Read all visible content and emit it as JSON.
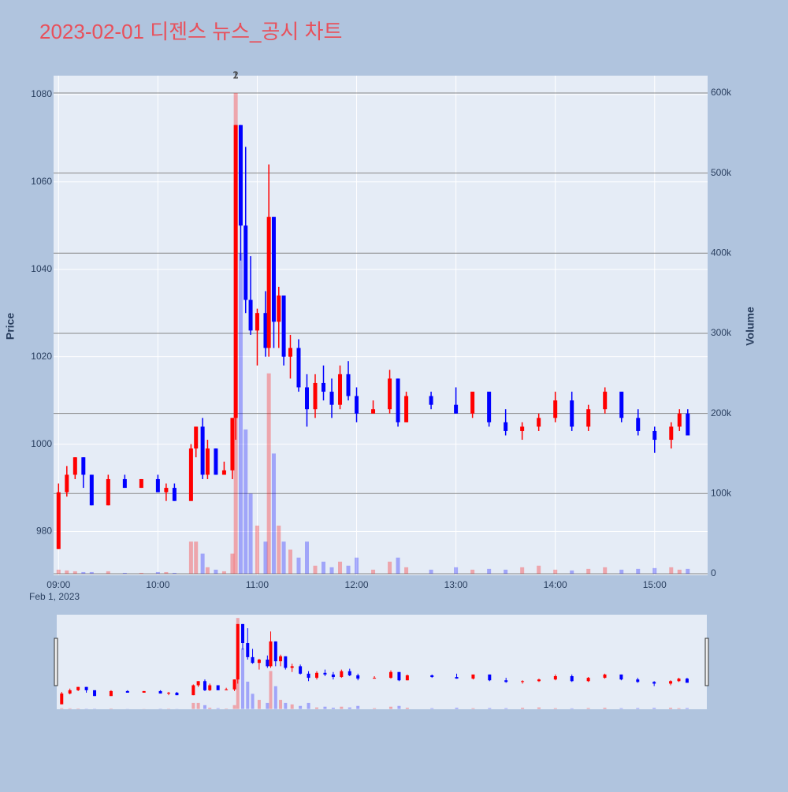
{
  "chart_data": {
    "type": "candlestick",
    "title": "2023-02-01 디젠스 뉴스_공시 차트",
    "ylabel": "Price",
    "y2label": "Volume",
    "x_date_label": "Feb 1, 2023",
    "increasing_color": "#ff0000",
    "decreasing_color": "#0000ff",
    "x": [
      "09:00",
      "09:05",
      "09:10",
      "09:15",
      "09:20",
      "09:30",
      "09:40",
      "09:50",
      "10:00",
      "10:05",
      "10:10",
      "10:20",
      "10:23",
      "10:27",
      "10:30",
      "10:35",
      "10:40",
      "10:45",
      "10:47",
      "10:50",
      "10:53",
      "10:56",
      "11:00",
      "11:05",
      "11:07",
      "11:10",
      "11:13",
      "11:16",
      "11:20",
      "11:25",
      "11:30",
      "11:35",
      "11:40",
      "11:45",
      "11:50",
      "11:55",
      "12:00",
      "12:10",
      "12:20",
      "12:25",
      "12:30",
      "12:45",
      "13:00",
      "13:10",
      "13:20",
      "13:30",
      "13:40",
      "13:50",
      "14:00",
      "14:10",
      "14:20",
      "14:30",
      "14:40",
      "14:50",
      "15:00",
      "15:10",
      "15:15",
      "15:20"
    ],
    "open": [
      976,
      989,
      993,
      997,
      993,
      986,
      992,
      990,
      992,
      989,
      990,
      987,
      999,
      1004,
      993,
      999,
      993,
      994,
      1006,
      1073,
      1050,
      1033,
      1026,
      1030,
      1022,
      1052,
      1028,
      1034,
      1020,
      1022,
      1013,
      1008,
      1014,
      1012,
      1009,
      1016,
      1011,
      1007,
      1008,
      1015,
      1005,
      1011,
      1009,
      1007,
      1012,
      1005,
      1003,
      1004,
      1006,
      1010,
      1004,
      1008,
      1012,
      1006,
      1003,
      1001,
      1004,
      1007
    ],
    "high": [
      991,
      995,
      997,
      997,
      993,
      993,
      993,
      992,
      993,
      991,
      991,
      1000,
      1004,
      1006,
      1001,
      999,
      996,
      1006,
      1073,
      1073,
      1068,
      1043,
      1031,
      1035,
      1064,
      1052,
      1036,
      1034,
      1025,
      1024,
      1016,
      1016,
      1018,
      1015,
      1018,
      1019,
      1013,
      1010,
      1017,
      1015,
      1012,
      1012,
      1013,
      1012,
      1012,
      1008,
      1005,
      1007,
      1012,
      1012,
      1009,
      1013,
      1012,
      1008,
      1004,
      1005,
      1008,
      1008
    ],
    "low": [
      976,
      988,
      992,
      990,
      986,
      986,
      990,
      990,
      989,
      987,
      987,
      987,
      997,
      992,
      992,
      993,
      993,
      992,
      1001,
      1042,
      1030,
      1025,
      1018,
      1020,
      1020,
      1022,
      1022,
      1018,
      1015,
      1012,
      1004,
      1006,
      1010,
      1006,
      1008,
      1010,
      1005,
      1007,
      1007,
      1004,
      1005,
      1008,
      1007,
      1006,
      1004,
      1002,
      1001,
      1003,
      1005,
      1003,
      1003,
      1007,
      1005,
      1002,
      998,
      999,
      1003,
      1002
    ],
    "close": [
      989,
      993,
      997,
      993,
      986,
      992,
      990,
      992,
      989,
      990,
      987,
      999,
      1004,
      993,
      999,
      993,
      994,
      1006,
      1073,
      1050,
      1033,
      1026,
      1030,
      1022,
      1052,
      1028,
      1034,
      1020,
      1022,
      1013,
      1008,
      1014,
      1012,
      1009,
      1016,
      1011,
      1007,
      1008,
      1015,
      1005,
      1011,
      1009,
      1007,
      1012,
      1005,
      1003,
      1004,
      1006,
      1010,
      1004,
      1008,
      1012,
      1006,
      1003,
      1001,
      1004,
      1007,
      1002
    ],
    "volume": [
      5000,
      4000,
      3000,
      2000,
      2000,
      3000,
      1000,
      1000,
      2000,
      2000,
      1000,
      40000,
      40000,
      25000,
      8000,
      5000,
      3000,
      25000,
      600000,
      400000,
      180000,
      100000,
      60000,
      40000,
      250000,
      150000,
      60000,
      40000,
      30000,
      20000,
      40000,
      10000,
      15000,
      8000,
      15000,
      10000,
      20000,
      5000,
      15000,
      20000,
      8000,
      5000,
      8000,
      5000,
      6000,
      5000,
      8000,
      10000,
      5000,
      4000,
      6000,
      8000,
      5000,
      6000,
      7000,
      8000,
      5000,
      6000
    ],
    "xlim": [
      "08:57",
      "15:32"
    ],
    "xticks": [
      "09:00",
      "10:00",
      "11:00",
      "12:00",
      "13:00",
      "14:00",
      "15:00"
    ],
    "ylim": [
      970,
      1084.3
    ],
    "yticks": [
      980,
      1000,
      1020,
      1040,
      1060,
      1080
    ],
    "y2lim": [
      -2000,
      621600
    ],
    "y2ticks": [
      0,
      {
        "value": 100000,
        "label": "100k"
      },
      {
        "value": 200000,
        "label": "200k"
      },
      {
        "value": 300000,
        "label": "300k"
      },
      {
        "value": 400000,
        "label": "400k"
      },
      {
        "value": 500000,
        "label": "500k"
      },
      {
        "value": 600000,
        "label": "600k"
      }
    ],
    "annotations": [
      {
        "x": "10:47",
        "text": "1"
      },
      {
        "x": "10:47",
        "text": "2"
      }
    ]
  }
}
